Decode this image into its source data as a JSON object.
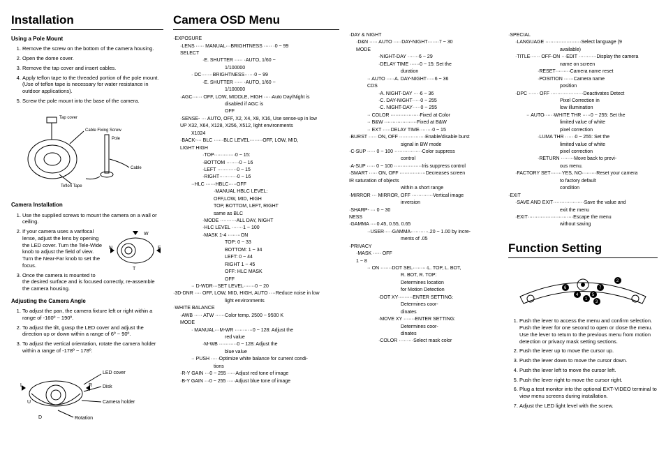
{
  "installation": {
    "title": "Installation",
    "pole_mount_heading": "Using a Pole Mount",
    "pole_steps": [
      "Remove the screw on the bottom of the camera housing.",
      "Open the dome cover.",
      "Remove the tap cover and insert cables.",
      "Apply teflon tape to the threaded portion of the pole mount. (Use of teflon tape is necessary for water resistance in outdoor applications).",
      "Screw the pole mount into the base of the camera."
    ],
    "diagram1_labels": {
      "tap_cover": "Tap cover",
      "cable_fixing_screw": "Cable Fixing Screw",
      "pole": "Pole",
      "cable": "Cable",
      "teflon_tape": "Teflon Tape"
    },
    "cam_install_heading": "Camera Installation",
    "cam_install_steps": [
      "Use the supplied screws to mount the camera on a wall or ceiling.",
      "If your camera uses a varifocal lense, adjust the lens by opening the LED cover. Turn the Tele-Wide knob to adjust the field of view. Turn the Near-Far knob to set the focus.",
      "Once the camera is mounted to the desired surface and is focused correctly, re-assemble the camera housing."
    ],
    "diagram2_labels": {
      "n": "N",
      "f": "F",
      "w": "W",
      "t": "T"
    },
    "angle_heading": "Adjusting the Camera Angle",
    "angle_steps": [
      "To adjust the pan, the camera fixture left or right within a range of -160º ~ 190º.",
      "To adjust the tilt, grasp the LED cover and adjust the direction up or down within a range of 6º ~ 90º.",
      "To adjust the vertical orientation, rotate the camera holder within a range of -178º ~ 178º."
    ],
    "diagram3_labels": {
      "led_cover": "LED cover",
      "disk": "Disk",
      "camera_holder": "Camera holder",
      "rotation": "Rotation",
      "l": "L",
      "r": "R",
      "u": "U",
      "d": "D"
    }
  },
  "osd": {
    "title": "Camera OSD Menu",
    "col2_lines": [
      {
        "i": 0,
        "t": "·EXPOSURE"
      },
      {
        "i": 1,
        "t": "·LENS ····· MANUAL···BRIGHTNESS ····· ·0 ~ 99"
      },
      {
        "i": 1,
        "t": " SELECT"
      },
      {
        "i": 3,
        "t": "·E. SHUTTER ····· ·AUTO, 1/60 ~"
      },
      {
        "i": 5,
        "t": "1/100000"
      },
      {
        "i": 2,
        "t": "· DC·······BRIGHTNESS······0 ~ 99"
      },
      {
        "i": 3,
        "t": "·E. SHUTTER ····· ·AUTO, 1/60 ~"
      },
      {
        "i": 5,
        "t": "1/100000"
      },
      {
        "i": 1,
        "t": "·AGC······ OFF, LOW, MIDDLE, HIGH ·····Auto Day/Night is"
      },
      {
        "i": 5,
        "t": "disabled if AGC is"
      },
      {
        "i": 5,
        "t": "OFF"
      },
      {
        "i": 1,
        "t": "·SENSE- ··· AUTO, OFF, X2, X4, X8, X16,    Use sense-up in low"
      },
      {
        "i": 1,
        "t": " UP          X32, X64, X128, X256, X512,  light environments"
      },
      {
        "i": 2,
        "t": "        X1024"
      },
      {
        "i": 1,
        "t": "·BACK-··· BLC ······BLC LEVEL········OFF, LOW, MID,"
      },
      {
        "i": 1,
        "t": " LIGHT                               HIGH"
      },
      {
        "i": 3,
        "t": "·TOP·············0 ~ 15:"
      },
      {
        "i": 3,
        "t": "·BOTTOM ········0 ~ 16"
      },
      {
        "i": 3,
        "t": "·LEFT ············0 ~ 15"
      },
      {
        "i": 3,
        "t": "·RIGHT···········0 ~ 16"
      },
      {
        "i": 2,
        "t": "··HLC ······HBLC·····OFF"
      },
      {
        "i": 4,
        "t": "·MANUAL HBLC LEVEL:"
      },
      {
        "i": 4,
        "t": "OFF,LOW, MID, HIGH"
      },
      {
        "i": 4,
        "t": "TOP, BOTTOM, LEFT, RIGHT"
      },
      {
        "i": 4,
        "t": "same as BLC"
      },
      {
        "i": 3,
        "t": "·MODE ··········ALL DAY, NIGHT"
      },
      {
        "i": 3,
        "t": "·HLC LEVEL ·······1 ~ 100"
      },
      {
        "i": 3,
        "t": "·MASK 1-4 ········ON"
      },
      {
        "i": 5,
        "t": "TOP: 0 ~ 33"
      },
      {
        "i": 5,
        "t": "BOTTOM: 1 ~ 34"
      },
      {
        "i": 5,
        "t": "LEFT: 0 ~ 44"
      },
      {
        "i": 5,
        "t": "RIGHT 1 ~ 45"
      },
      {
        "i": 5,
        "t": "OFF: HLC MASK"
      },
      {
        "i": 5,
        "t": "OFF"
      },
      {
        "i": 2,
        "t": "·· D-WDR···SET LEVEL·······0 ~ 20"
      },
      {
        "i": 0,
        "t": "·3D-DNR ···· OFF, LOW, MID, HIGH, AUTO ····Reduce noise in low"
      },
      {
        "i": 5,
        "t": "light environments"
      },
      {
        "i": 0,
        "t": "·WHITE BALANCE"
      },
      {
        "i": 1,
        "t": "·AWB ····· ATW ······Color temp. 2500 ~ 9500 K"
      },
      {
        "i": 1,
        "t": " MODE"
      },
      {
        "i": 2,
        "t": "· MANUAL···M-WR ···········0 ~ 128: Adjust the"
      },
      {
        "i": 5,
        "t": "red value"
      },
      {
        "i": 3,
        "t": "·M-WB ···········0 ~ 128: Adjust the"
      },
      {
        "i": 5,
        "t": "blue value"
      },
      {
        "i": 2,
        "t": "·· PUSH ·····Optimize white balance for current condi-"
      },
      {
        "i": 4,
        "t": "tions"
      },
      {
        "i": 1,
        "t": "·R-Y GAIN ···0 ~ 255 ·····Adjust red tone of image"
      },
      {
        "i": 1,
        "t": "·B-Y GAIN ···0 ~ 255 ·····Adjust blue tone of image"
      }
    ],
    "col3_lines": [
      {
        "i": 0,
        "t": "·DAY & NIGHT"
      },
      {
        "i": 1,
        "t": "·D&N ····· AUTO ·····DAY-NIGHT·······7 ~ 30"
      },
      {
        "i": 1,
        "t": " MODE"
      },
      {
        "i": 3,
        "t": "·NIGHT-DAY ·······6 ~ 29"
      },
      {
        "i": 3,
        "t": "·DELAY TIME ······0 ~ 15: Set the"
      },
      {
        "i": 5,
        "t": "duration"
      },
      {
        "i": 2,
        "t": "·· AUTO ·····A. DAY-NIGHT·····6 ~ 36"
      },
      {
        "i": 2,
        "t": "  CDS"
      },
      {
        "i": 3,
        "t": "·A. NIGHT-DAY ····6 ~ 36"
      },
      {
        "i": 3,
        "t": "·C. DAY-NIGHT·····0 ~ 255"
      },
      {
        "i": 3,
        "t": "·C. NIGHT-DAY·····0 ~ 255"
      },
      {
        "i": 2,
        "t": "·· COLOR ··················Fixed at Color"
      },
      {
        "i": 2,
        "t": "·· B&W ····················Fixed at B&W"
      },
      {
        "i": 2,
        "t": "·· EXT ·····DELAY TIME········0 ~ 15"
      },
      {
        "i": 0,
        "t": "·BURST ····· ON, OFF ················Enable/disable burst"
      },
      {
        "i": 5,
        "t": "signal in BW mode"
      },
      {
        "i": 0,
        "t": "·C-SUP ····· 0 ~ 100 ·················Color suppress"
      },
      {
        "i": 5,
        "t": "control"
      },
      {
        "i": 0,
        "t": "·A-SUP ····· 0 ~ 100 ·················Iris suppress control"
      },
      {
        "i": 0,
        "t": "·SMART ····· ON, OFF ················Decreases screen"
      },
      {
        "i": 0,
        "t": " IR                               saturation of objects"
      },
      {
        "i": 5,
        "t": "within a short range"
      },
      {
        "i": 0,
        "t": "·MIRROR ··· MIRROR, OFF ·············Vertical image"
      },
      {
        "i": 5,
        "t": "inversion"
      },
      {
        "i": 0,
        "t": "·SHARP- ··· 0 ~ 30"
      },
      {
        "i": 0,
        "t": " NESS"
      },
      {
        "i": 0,
        "t": "·GAMMA ····0.45, 0.55, 0.65"
      },
      {
        "i": 2,
        "t": "··USER·····GAMMA···········.20 ~ 1.00 by incre-"
      },
      {
        "i": 5,
        "t": "ments of .05"
      },
      {
        "i": 0,
        "t": "·PRIVACY"
      },
      {
        "i": 1,
        "t": "·MASK ····· OFF"
      },
      {
        "i": 1,
        "t": " 1 ~ 8"
      },
      {
        "i": 2,
        "t": "·· ON ·······DOT SEL·········L. TOP, L. BOT,"
      },
      {
        "i": 5,
        "t": "R. BOT, R. TOP:"
      },
      {
        "i": 5,
        "t": "Determines location"
      },
      {
        "i": 5,
        "t": "for Motion Detection"
      },
      {
        "i": 3,
        "t": "·DOT XY·········ENTER SETTING:"
      },
      {
        "i": 5,
        "t": "Determines coor-"
      },
      {
        "i": 5,
        "t": "dinates"
      },
      {
        "i": 3,
        "t": "·MOVE XY ·······ENTER SETTING:"
      },
      {
        "i": 5,
        "t": "Determines coor-"
      },
      {
        "i": 5,
        "t": "dinates"
      },
      {
        "i": 3,
        "t": "·COLOR ·········Select mask color"
      }
    ],
    "col4_lines": [
      {
        "i": 0,
        "t": "·SPECIAL"
      },
      {
        "i": 1,
        "t": "·LANGUAGE ······················Select language (9"
      },
      {
        "i": 5,
        "t": "available)"
      },
      {
        "i": 1,
        "t": "·TITLE······ OFF-ON ···EDIT ···········Display the camera"
      },
      {
        "i": 5,
        "t": "name on screen"
      },
      {
        "i": 3,
        "t": "·RESET·········Camera name reset"
      },
      {
        "i": 3,
        "t": "·POSITION ······Camera name"
      },
      {
        "i": 5,
        "t": "position"
      },
      {
        "i": 1,
        "t": "·DPC ······ OFF ····················Deactivates Detect"
      },
      {
        "i": 5,
        "t": "Pixel Correction in"
      },
      {
        "i": 5,
        "t": "low illumination"
      },
      {
        "i": 2,
        "t": "·· AUTO······WHITE THR ·····0 ~ 255: Set the"
      },
      {
        "i": 5,
        "t": "limited value of white"
      },
      {
        "i": 5,
        "t": "pixel correction"
      },
      {
        "i": 3,
        "t": "·LUMA THR ······0 ~ 255: Set the"
      },
      {
        "i": 5,
        "t": "limited value of white"
      },
      {
        "i": 5,
        "t": "pixel correction"
      },
      {
        "i": 3,
        "t": "·RETURN ········Move back to previ-"
      },
      {
        "i": 5,
        "t": "ous menu."
      },
      {
        "i": 1,
        "t": "·FACTORY SET·······YES, NO·········Reset your camera"
      },
      {
        "i": 5,
        "t": "to factory default"
      },
      {
        "i": 5,
        "t": "condition"
      },
      {
        "i": 0,
        "t": "·EXIT"
      },
      {
        "i": 1,
        "t": "·SAVE AND EXIT···················Save the value and"
      },
      {
        "i": 5,
        "t": "exit the menu"
      },
      {
        "i": 1,
        "t": "·EXIT····························Escape the menu"
      },
      {
        "i": 5,
        "t": "without saving"
      }
    ]
  },
  "function": {
    "title": "Function Setting",
    "steps": [
      "Push the lever to access the menu and confirm selection. Push the lever for one second to open or close the menu. Use the lever to return to the previous menu from motion detection or privacy mask setting sections.",
      "Push the lever up to move the cursor up.",
      "Push the lever down to move the cursor down.",
      "Push the lever left to move the cursor left.",
      "Push the lever right to move the cursor right.",
      "Plug a test monitor into the optional EXT-VIDEO terminal to view menu screens during installation.",
      "Adjust the LED light level with the screw."
    ]
  }
}
